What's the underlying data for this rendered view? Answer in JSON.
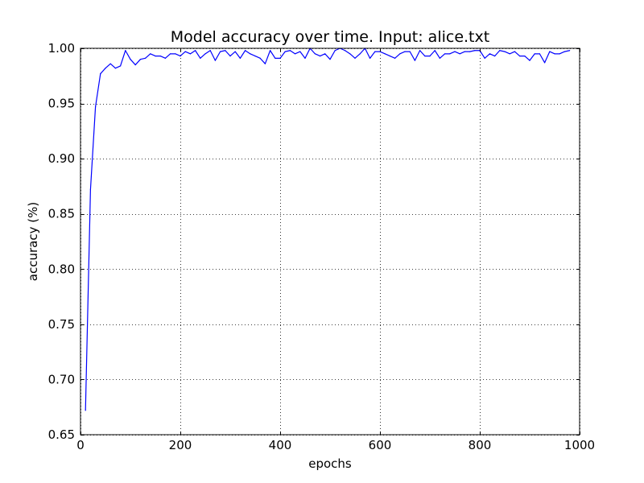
{
  "chart_data": {
    "type": "line",
    "title": "Model accuracy over time. Input: alice.txt",
    "xlabel": "epochs",
    "ylabel": "accuracy (%)",
    "xlim": [
      0,
      1000
    ],
    "ylim": [
      0.65,
      1.0
    ],
    "x_ticks": [
      0,
      200,
      400,
      600,
      800,
      1000
    ],
    "y_ticks": [
      0.65,
      0.7,
      0.75,
      0.8,
      0.85,
      0.9,
      0.95,
      1.0
    ],
    "x_tick_labels": [
      "0",
      "200",
      "400",
      "600",
      "800",
      "1000"
    ],
    "y_tick_labels": [
      "0.65",
      "0.70",
      "0.75",
      "0.80",
      "0.85",
      "0.90",
      "0.95",
      "1.00"
    ],
    "grid": true,
    "series": [
      {
        "color": "#0000ff",
        "x": [
          10,
          20,
          30,
          40,
          50,
          60,
          70,
          80,
          90,
          100,
          110,
          120,
          130,
          140,
          150,
          160,
          170,
          180,
          190,
          200,
          210,
          220,
          230,
          240,
          250,
          260,
          270,
          280,
          290,
          300,
          310,
          320,
          330,
          340,
          350,
          360,
          370,
          380,
          390,
          400,
          410,
          420,
          430,
          440,
          450,
          460,
          470,
          480,
          490,
          500,
          510,
          520,
          530,
          540,
          550,
          560,
          570,
          580,
          590,
          600,
          610,
          620,
          630,
          640,
          650,
          660,
          670,
          680,
          690,
          700,
          710,
          720,
          730,
          740,
          750,
          760,
          770,
          780,
          790,
          800,
          810,
          820,
          830,
          840,
          850,
          860,
          870,
          880,
          890,
          900,
          910,
          920,
          930,
          940,
          950,
          960,
          970,
          980
        ],
        "y": [
          0.672,
          0.872,
          0.947,
          0.977,
          0.982,
          0.986,
          0.982,
          0.984,
          0.998,
          0.99,
          0.985,
          0.99,
          0.991,
          0.995,
          0.993,
          0.993,
          0.991,
          0.995,
          0.995,
          0.993,
          0.997,
          0.995,
          0.998,
          0.991,
          0.995,
          0.998,
          0.989,
          0.997,
          0.998,
          0.993,
          0.997,
          0.991,
          0.998,
          0.995,
          0.993,
          0.991,
          0.986,
          0.998,
          0.991,
          0.991,
          0.997,
          0.998,
          0.995,
          0.997,
          0.991,
          1.0,
          0.995,
          0.993,
          0.995,
          0.99,
          0.998,
          1.0,
          0.998,
          0.995,
          0.991,
          0.995,
          1.0,
          0.991,
          0.997,
          0.997,
          0.995,
          0.993,
          0.991,
          0.995,
          0.997,
          0.997,
          0.989,
          0.998,
          0.993,
          0.993,
          0.998,
          0.991,
          0.995,
          0.995,
          0.997,
          0.995,
          0.997,
          0.997,
          0.998,
          0.998,
          0.991,
          0.995,
          0.993,
          0.998,
          0.997,
          0.995,
          0.997,
          0.993,
          0.993,
          0.989,
          0.995,
          0.995,
          0.987,
          0.997,
          0.995,
          0.995,
          0.997,
          0.998
        ]
      }
    ]
  }
}
